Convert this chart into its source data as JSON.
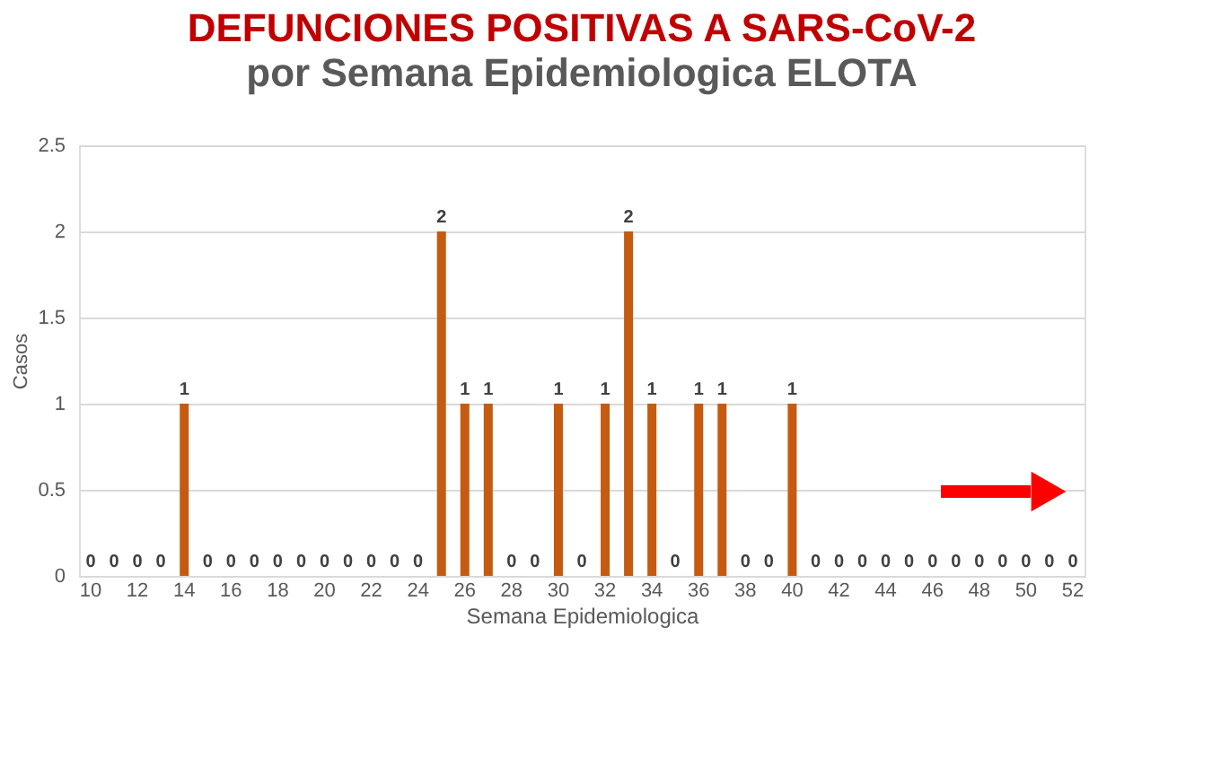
{
  "chart_data": {
    "type": "bar",
    "title": "DEFUNCIONES POSITIVAS A SARS-CoV-2",
    "subtitle": "por Semana Epidemiologica ELOTA",
    "xlabel": "Semana Epidemiologica",
    "ylabel": "Casos",
    "categories": [
      "10",
      null,
      "12",
      null,
      "14",
      null,
      "16",
      null,
      "18",
      null,
      "20",
      null,
      "22",
      null,
      "24",
      null,
      "26",
      null,
      "28",
      null,
      "30",
      null,
      "32",
      null,
      "34",
      null,
      "36",
      null,
      "38",
      null,
      "40",
      null,
      "42",
      null,
      "44",
      null,
      "46",
      null,
      "48",
      null,
      "50",
      null,
      "52"
    ],
    "values": [
      0,
      0,
      0,
      0,
      1,
      0,
      0,
      0,
      0,
      0,
      0,
      0,
      0,
      0,
      0,
      2,
      1,
      1,
      0,
      0,
      1,
      0,
      1,
      2,
      1,
      0,
      1,
      1,
      0,
      0,
      1,
      0,
      0,
      0,
      0,
      0,
      0,
      0,
      0,
      0,
      0,
      0,
      0
    ],
    "color": "#c55a11",
    "ylim": [
      0,
      2.5
    ],
    "yticks": [
      0,
      0.5,
      1,
      1.5,
      2,
      2.5
    ],
    "grid": "y",
    "data_labels": true
  }
}
